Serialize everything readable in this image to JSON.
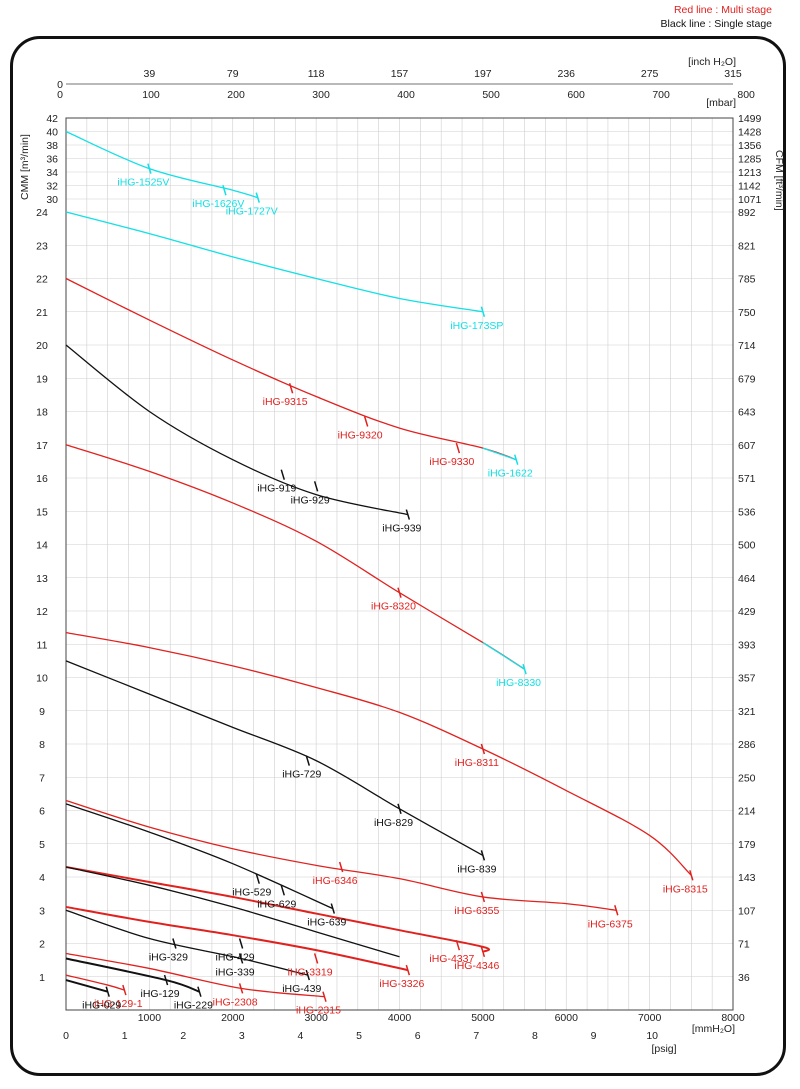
{
  "legend": {
    "red_line": "Red line : Multi stage",
    "black_line": "Black line : Single stage"
  },
  "colors": {
    "red": "#e0221f",
    "black": "#111111",
    "cyan": "#12e0e6",
    "grid": "#cfcfcf"
  },
  "chart_data": {
    "type": "line",
    "title": "",
    "x_bottom": {
      "label": "mmH₂O",
      "range": [
        0,
        8000
      ],
      "ticks": [
        1000,
        2000,
        3000,
        4000,
        5000,
        6000,
        7000,
        8000
      ],
      "unit_label": "[mmH₂O]"
    },
    "x_psig": {
      "ticks": [
        "0",
        "1",
        "2",
        "3",
        "4",
        "5",
        "6",
        "7",
        "8",
        "9",
        "10"
      ],
      "unit_label": "[psig]"
    },
    "x_top_mbar": {
      "ticks": [
        "0",
        "100",
        "200",
        "300",
        "400",
        "500",
        "600",
        "700",
        "800"
      ],
      "unit_label": "[mbar]"
    },
    "x_top_inch": {
      "ticks": [
        "39",
        "79",
        "118",
        "157",
        "197",
        "236",
        "275",
        "315"
      ],
      "unit_label": "[inch H₂O]"
    },
    "y_left": {
      "label": "CMM [m³/min]",
      "scale": "piecewise",
      "ticks_lower": [
        "1",
        "2",
        "3",
        "4",
        "5",
        "6",
        "7",
        "8",
        "9",
        "10",
        "11",
        "12",
        "13",
        "14",
        "15",
        "16",
        "17",
        "18",
        "19",
        "20",
        "21",
        "22",
        "23",
        "24"
      ],
      "ticks_upper": [
        "30",
        "32",
        "34",
        "36",
        "38",
        "40",
        "42"
      ]
    },
    "y_right": {
      "label": "CFM [ft³/min]",
      "ticks_lower": [
        "36",
        "71",
        "107",
        "143",
        "179",
        "214",
        "250",
        "286",
        "321",
        "357",
        "393",
        "429",
        "464",
        "500",
        "536",
        "571",
        "607",
        "643",
        "679",
        "714",
        "750",
        "785",
        "821",
        "892"
      ],
      "ticks_upper": [
        "1071",
        "1142",
        "1213",
        "1285",
        "1356",
        "1428",
        "1499"
      ]
    },
    "series": [
      {
        "color": "cyan",
        "points": [
          [
            0,
            40
          ],
          [
            1000,
            34.5
          ],
          [
            2000,
            31.3
          ],
          [
            2300,
            30.2
          ]
        ],
        "labels": [
          {
            "text": "iHG-1525V",
            "at": [
              1000,
              34.5
            ]
          },
          {
            "text": "iHG-1626V",
            "at": [
              1900,
              31.3
            ]
          },
          {
            "text": "iHG-1727V",
            "at": [
              2300,
              30.2
            ]
          }
        ]
      },
      {
        "color": "cyan",
        "points": [
          [
            0,
            24
          ],
          [
            1000,
            23.35
          ],
          [
            2000,
            22.65
          ],
          [
            3000,
            22.0
          ],
          [
            4000,
            21.4
          ],
          [
            5000,
            21.0
          ]
        ],
        "labels": [
          {
            "text": "iHG-173SP",
            "at": [
              5000,
              21.0
            ]
          }
        ]
      },
      {
        "color": "red",
        "points": [
          [
            0,
            22
          ],
          [
            1000,
            20.75
          ],
          [
            2000,
            19.55
          ],
          [
            3000,
            18.45
          ],
          [
            4000,
            17.5
          ],
          [
            5000,
            16.9
          ],
          [
            5400,
            16.55
          ]
        ],
        "labels": [
          {
            "text": "iHG-9315",
            "at": [
              2700,
              18.7
            ]
          },
          {
            "text": "iHG-9320",
            "at": [
              3600,
              17.7
            ]
          },
          {
            "text": "iHG-9330",
            "at": [
              4700,
              16.9
            ]
          }
        ]
      },
      {
        "color": "cyan",
        "points": [
          [
            5000,
            16.9
          ],
          [
            5400,
            16.55
          ]
        ],
        "labels": [
          {
            "text": "iHG-1622",
            "at": [
              5400,
              16.55
            ]
          }
        ]
      },
      {
        "color": "black",
        "points": [
          [
            0,
            20
          ],
          [
            1000,
            18.0
          ],
          [
            2000,
            16.55
          ],
          [
            3000,
            15.5
          ],
          [
            4100,
            14.9
          ]
        ],
        "labels": [
          {
            "text": "iHG-919",
            "at": [
              2600,
              16.1
            ]
          },
          {
            "text": "iHG-929",
            "at": [
              3000,
              15.75
            ]
          },
          {
            "text": "iHG-939",
            "at": [
              4100,
              14.9
            ]
          }
        ]
      },
      {
        "color": "red",
        "points": [
          [
            0,
            17
          ],
          [
            1000,
            16.2
          ],
          [
            2000,
            15.25
          ],
          [
            3000,
            14.1
          ],
          [
            4000,
            12.55
          ],
          [
            5000,
            11.05
          ],
          [
            5500,
            10.25
          ]
        ],
        "labels": [
          {
            "text": "iHG-8320",
            "at": [
              4000,
              12.55
            ]
          }
        ]
      },
      {
        "color": "cyan",
        "points": [
          [
            5000,
            11.05
          ],
          [
            5500,
            10.25
          ]
        ],
        "labels": [
          {
            "text": "iHG-8330",
            "at": [
              5500,
              10.25
            ]
          }
        ]
      },
      {
        "color": "red",
        "points": [
          [
            0,
            11.35
          ],
          [
            1000,
            10.9
          ],
          [
            2000,
            10.35
          ],
          [
            3000,
            9.7
          ],
          [
            4000,
            8.95
          ],
          [
            5000,
            7.85
          ],
          [
            6000,
            6.6
          ],
          [
            7000,
            5.25
          ],
          [
            7500,
            4.05
          ]
        ],
        "labels": [
          {
            "text": "iHG-8311",
            "at": [
              5000,
              7.85
            ]
          },
          {
            "text": "iHG-8315",
            "at": [
              7500,
              4.05
            ]
          }
        ]
      },
      {
        "color": "black",
        "points": [
          [
            0,
            10.5
          ],
          [
            1000,
            9.5
          ],
          [
            2000,
            8.5
          ],
          [
            3000,
            7.5
          ],
          [
            4000,
            6.05
          ],
          [
            5000,
            4.65
          ]
        ],
        "labels": [
          {
            "text": "iHG-729",
            "at": [
              2900,
              7.5
            ]
          },
          {
            "text": "iHG-829",
            "at": [
              4000,
              6.05
            ]
          },
          {
            "text": "iHG-839",
            "at": [
              5000,
              4.65
            ]
          }
        ]
      },
      {
        "color": "red",
        "points": [
          [
            0,
            6.3
          ],
          [
            1000,
            5.5
          ],
          [
            2000,
            4.85
          ],
          [
            3000,
            4.35
          ],
          [
            4000,
            3.95
          ],
          [
            5000,
            3.4
          ],
          [
            6000,
            3.2
          ],
          [
            6600,
            3.0
          ]
        ],
        "labels": [
          {
            "text": "iHG-6346",
            "at": [
              3300,
              4.3
            ]
          },
          {
            "text": "iHG-6355",
            "at": [
              5000,
              3.4
            ]
          },
          {
            "text": "iHG-6375",
            "at": [
              6600,
              3.0
            ]
          }
        ]
      },
      {
        "color": "black",
        "points": [
          [
            0,
            6.2
          ],
          [
            1000,
            5.35
          ],
          [
            2000,
            4.4
          ],
          [
            3200,
            3.05
          ]
        ],
        "labels": [
          {
            "text": "iHG-529",
            "at": [
              2300,
              3.95
            ]
          },
          {
            "text": "iHG-629",
            "at": [
              2600,
              3.6
            ]
          },
          {
            "text": "iHG-639",
            "at": [
              3200,
              3.05
            ]
          }
        ]
      },
      {
        "color": "red",
        "width": 2,
        "points": [
          [
            0,
            4.3
          ],
          [
            1000,
            3.85
          ],
          [
            2000,
            3.4
          ],
          [
            3000,
            2.9
          ],
          [
            4000,
            2.4
          ],
          [
            5000,
            1.9
          ],
          [
            5000,
            1.75
          ]
        ],
        "labels": [
          {
            "text": "iHG-4337",
            "at": [
              4700,
              1.95
            ]
          },
          {
            "text": "iHG-4346",
            "at": [
              5000,
              1.75
            ]
          }
        ]
      },
      {
        "color": "black",
        "points": [
          [
            0,
            4.3
          ],
          [
            1000,
            3.75
          ],
          [
            2000,
            3.1
          ],
          [
            3000,
            2.35
          ],
          [
            4000,
            1.6
          ]
        ],
        "labels": []
      },
      {
        "color": "black",
        "points": [
          [
            0,
            3.0
          ],
          [
            1000,
            2.15
          ],
          [
            2100,
            1.55
          ],
          [
            2900,
            1.05
          ]
        ],
        "labels": [
          {
            "text": "iHG-329",
            "at": [
              1300,
              2.0
            ]
          },
          {
            "text": "iHG-429",
            "at": [
              2100,
              2.0
            ]
          },
          {
            "text": "iHG-339",
            "at": [
              2100,
              1.55
            ]
          },
          {
            "text": "iHG-439",
            "at": [
              2900,
              1.05
            ]
          }
        ]
      },
      {
        "color": "red",
        "width": 2,
        "points": [
          [
            0,
            3.1
          ],
          [
            1000,
            2.65
          ],
          [
            2000,
            2.25
          ],
          [
            3000,
            1.8
          ],
          [
            4100,
            1.2
          ]
        ],
        "labels": [
          {
            "text": "iHG-3319",
            "at": [
              3000,
              1.55
            ]
          },
          {
            "text": "iHG-3326",
            "at": [
              4100,
              1.2
            ]
          }
        ]
      },
      {
        "color": "red",
        "points": [
          [
            0,
            1.7
          ],
          [
            1000,
            1.25
          ],
          [
            2100,
            0.65
          ],
          [
            3100,
            0.4
          ]
        ],
        "labels": [
          {
            "text": "iHG-2308",
            "at": [
              2100,
              0.65
            ]
          },
          {
            "text": "iHG-2315",
            "at": [
              3100,
              0.4
            ]
          }
        ]
      },
      {
        "color": "red",
        "points": [
          [
            0,
            1.05
          ],
          [
            500,
            0.75
          ],
          [
            700,
            0.6
          ]
        ],
        "labels": [
          {
            "text": "iHG-129-1",
            "at": [
              700,
              0.6
            ]
          }
        ]
      },
      {
        "color": "black",
        "width": 2,
        "points": [
          [
            0,
            1.55
          ],
          [
            1200,
            0.9
          ],
          [
            1600,
            0.55
          ]
        ],
        "labels": [
          {
            "text": "iHG-129",
            "at": [
              1200,
              0.9
            ]
          },
          {
            "text": "iHG-229",
            "at": [
              1600,
              0.55
            ]
          }
        ]
      },
      {
        "color": "black",
        "width": 2,
        "points": [
          [
            0,
            0.9
          ],
          [
            500,
            0.55
          ]
        ],
        "labels": [
          {
            "text": "iHG-029",
            "at": [
              500,
              0.55
            ]
          }
        ]
      }
    ]
  }
}
